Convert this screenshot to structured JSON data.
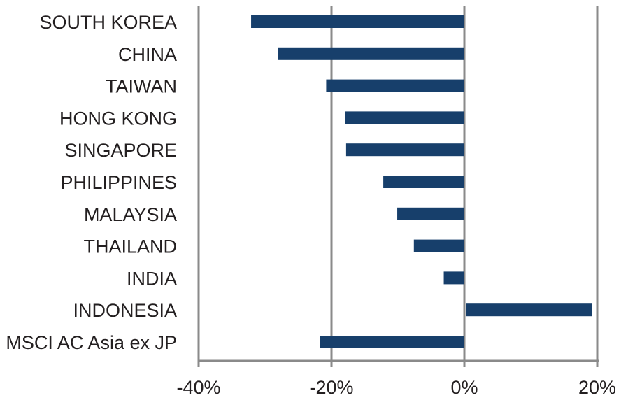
{
  "chart_data": {
    "type": "bar",
    "orientation": "horizontal",
    "categories": [
      "SOUTH KOREA",
      "CHINA",
      "TAIWAN",
      "HONG KONG",
      "SINGAPORE",
      "PHILIPPINES",
      "MALAYSIA",
      "THAILAND",
      "INDIA",
      "INDONESIA",
      "MSCI AC Asia ex JP"
    ],
    "values": [
      -32.1,
      -28.0,
      -20.8,
      -18.0,
      -17.8,
      -12.2,
      -10.1,
      -7.6,
      -3.1,
      19.2,
      -21.7
    ],
    "xlim": [
      -40,
      20
    ],
    "xticks": [
      -40,
      -20,
      0,
      20
    ],
    "xtick_labels": [
      "-40%",
      "-20%",
      "0%",
      "20%"
    ],
    "gridlines": true,
    "bar_color": "#173f6b",
    "grid_color": "#8a8a8a",
    "title": "",
    "xlabel": "",
    "ylabel": ""
  }
}
